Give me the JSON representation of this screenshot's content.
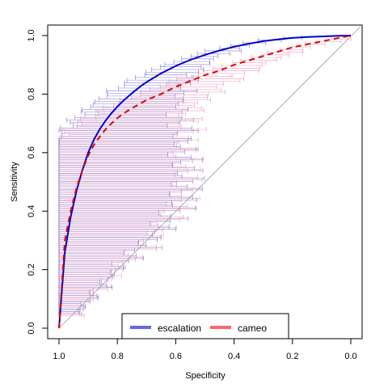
{
  "chart_data": {
    "type": "line",
    "title": "",
    "xlabel": "Specificity",
    "ylabel": "Sensitivity",
    "xlim": [
      1.0,
      0.0
    ],
    "ylim": [
      0.0,
      1.0
    ],
    "x_ticks": [
      "1.0",
      "0.8",
      "0.6",
      "0.4",
      "0.2",
      "0.0"
    ],
    "y_ticks": [
      "0.0",
      "0.2",
      "0.4",
      "0.6",
      "0.8",
      "1.0"
    ],
    "x_tick_values": [
      1.0,
      0.8,
      0.6,
      0.4,
      0.2,
      0.0
    ],
    "y_tick_values": [
      0.0,
      0.2,
      0.4,
      0.6,
      0.8,
      1.0
    ],
    "grid": false,
    "diagonal_reference": true,
    "legend_position": "bottom",
    "series": [
      {
        "name": "escalation",
        "color": "#0000cc",
        "legend_color": "#6666ee",
        "style": "solid",
        "x": [
          1.0,
          0.98,
          0.96,
          0.94,
          0.92,
          0.9,
          0.88,
          0.86,
          0.84,
          0.82,
          0.8,
          0.78,
          0.75,
          0.72,
          0.7,
          0.65,
          0.6,
          0.55,
          0.5,
          0.45,
          0.4,
          0.35,
          0.3,
          0.25,
          0.2,
          0.15,
          0.1,
          0.05,
          0.0
        ],
        "y": [
          0.0,
          0.26,
          0.38,
          0.47,
          0.54,
          0.6,
          0.645,
          0.68,
          0.71,
          0.735,
          0.757,
          0.777,
          0.803,
          0.827,
          0.841,
          0.871,
          0.896,
          0.917,
          0.934,
          0.949,
          0.962,
          0.972,
          0.981,
          0.987,
          0.992,
          0.995,
          0.997,
          0.999,
          1.0
        ]
      },
      {
        "name": "cameo",
        "color": "#dd0000",
        "legend_color": "#ff6666",
        "style": "dashed",
        "x": [
          1.0,
          0.98,
          0.96,
          0.94,
          0.92,
          0.9,
          0.88,
          0.86,
          0.84,
          0.82,
          0.8,
          0.78,
          0.75,
          0.72,
          0.7,
          0.65,
          0.6,
          0.55,
          0.5,
          0.45,
          0.4,
          0.35,
          0.3,
          0.25,
          0.2,
          0.15,
          0.1,
          0.05,
          0.0
        ],
        "y": [
          0.0,
          0.3,
          0.4,
          0.48,
          0.54,
          0.59,
          0.627,
          0.655,
          0.68,
          0.7,
          0.718,
          0.733,
          0.752,
          0.768,
          0.78,
          0.8,
          0.825,
          0.845,
          0.865,
          0.88,
          0.9,
          0.915,
          0.93,
          0.945,
          0.96,
          0.97,
          0.98,
          0.99,
          1.0
        ]
      }
    ],
    "confidence_bars": {
      "escalation": {
        "color": "#7766cc",
        "half_width": [
          0.0,
          0.06,
          0.09,
          0.12,
          0.15,
          0.19,
          0.23,
          0.26,
          0.28,
          0.3,
          0.3,
          0.3,
          0.28,
          0.26,
          0.24,
          0.21,
          0.18,
          0.15,
          0.12,
          0.09,
          0.06,
          0.04,
          0.02
        ]
      },
      "cameo": {
        "color": "#ee88aa",
        "half_width": [
          0.0,
          0.06,
          0.09,
          0.12,
          0.15,
          0.19,
          0.23,
          0.26,
          0.28,
          0.3,
          0.3,
          0.3,
          0.28,
          0.26,
          0.24,
          0.21,
          0.18,
          0.15,
          0.12,
          0.09,
          0.06,
          0.04,
          0.02
        ]
      }
    }
  }
}
